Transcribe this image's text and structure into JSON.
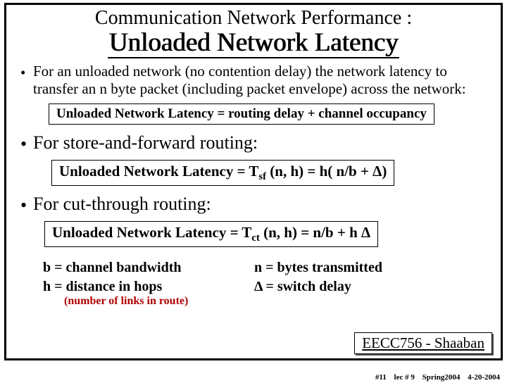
{
  "title": {
    "line1": "Communication Network Performance :",
    "line2": "Unloaded Network Latency"
  },
  "bullet1": "For an unloaded network (no contention delay) the network latency to transfer an n byte packet (including packet envelope) across the network:",
  "formula1": "Unloaded Network Latency =  routing delay  +  channel occupancy",
  "bullet2": "For store-and-forward routing:",
  "formula2_pre": "Unloaded Network Latency =  T",
  "formula2_sub": "sf",
  "formula2_post": " (n,  h)  =  h( n/b +  Δ)",
  "bullet3": "For  cut-through routing:",
  "formula3_pre": "Unloaded Network Latency =  T",
  "formula3_sub": "ct",
  "formula3_post": " (n,  h)  = n/b  + h Δ",
  "defs": {
    "b": "b = channel bandwidth",
    "h": "h = distance in hops",
    "n": "n = bytes transmitted",
    "d": "Δ  =  switch delay"
  },
  "note": "(number of links in route)",
  "footer": {
    "course": "EECC756 - Shaaban",
    "slide_no": "#11",
    "lec": "lec # 9",
    "term": "Spring2004",
    "date": "4-20-2004"
  },
  "colors": {
    "text": "#000000",
    "note_red": "#b00000",
    "background": "#ffffff"
  }
}
